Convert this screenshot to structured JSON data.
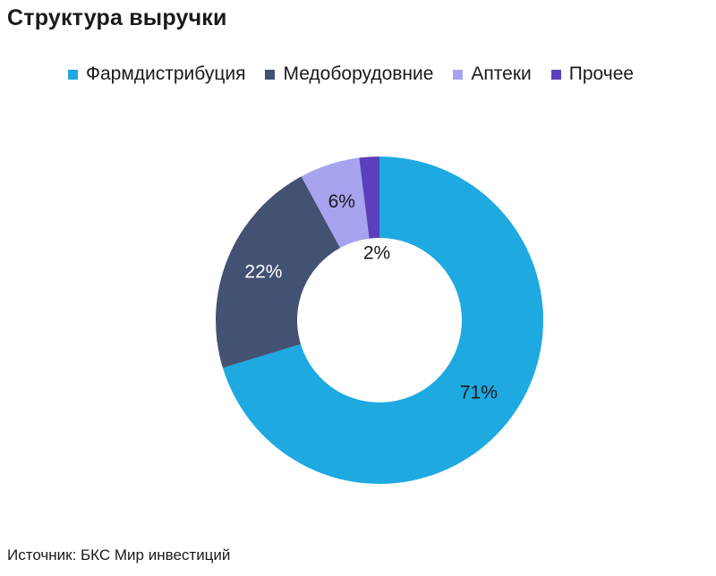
{
  "title": "Структура выручки",
  "source": "Источник: БКС Мир инвестиций",
  "chart_data": {
    "type": "pie",
    "donut": true,
    "title": "Структура выручки",
    "unit": "%",
    "legend_position": "top",
    "categories": [
      "Фармдистрибуция",
      "Медоборудовние",
      "Аптеки",
      "Прочее"
    ],
    "values": [
      71,
      22,
      6,
      2
    ],
    "labels": [
      "71%",
      "22%",
      "6%",
      "2%"
    ],
    "colors": [
      "#1ea9e1",
      "#435172",
      "#a7a3ee",
      "#5b3fbd"
    ],
    "label_colors": [
      "#1a1a1a",
      "#ffffff",
      "#1a1a1a",
      "#1a1a1a"
    ]
  }
}
